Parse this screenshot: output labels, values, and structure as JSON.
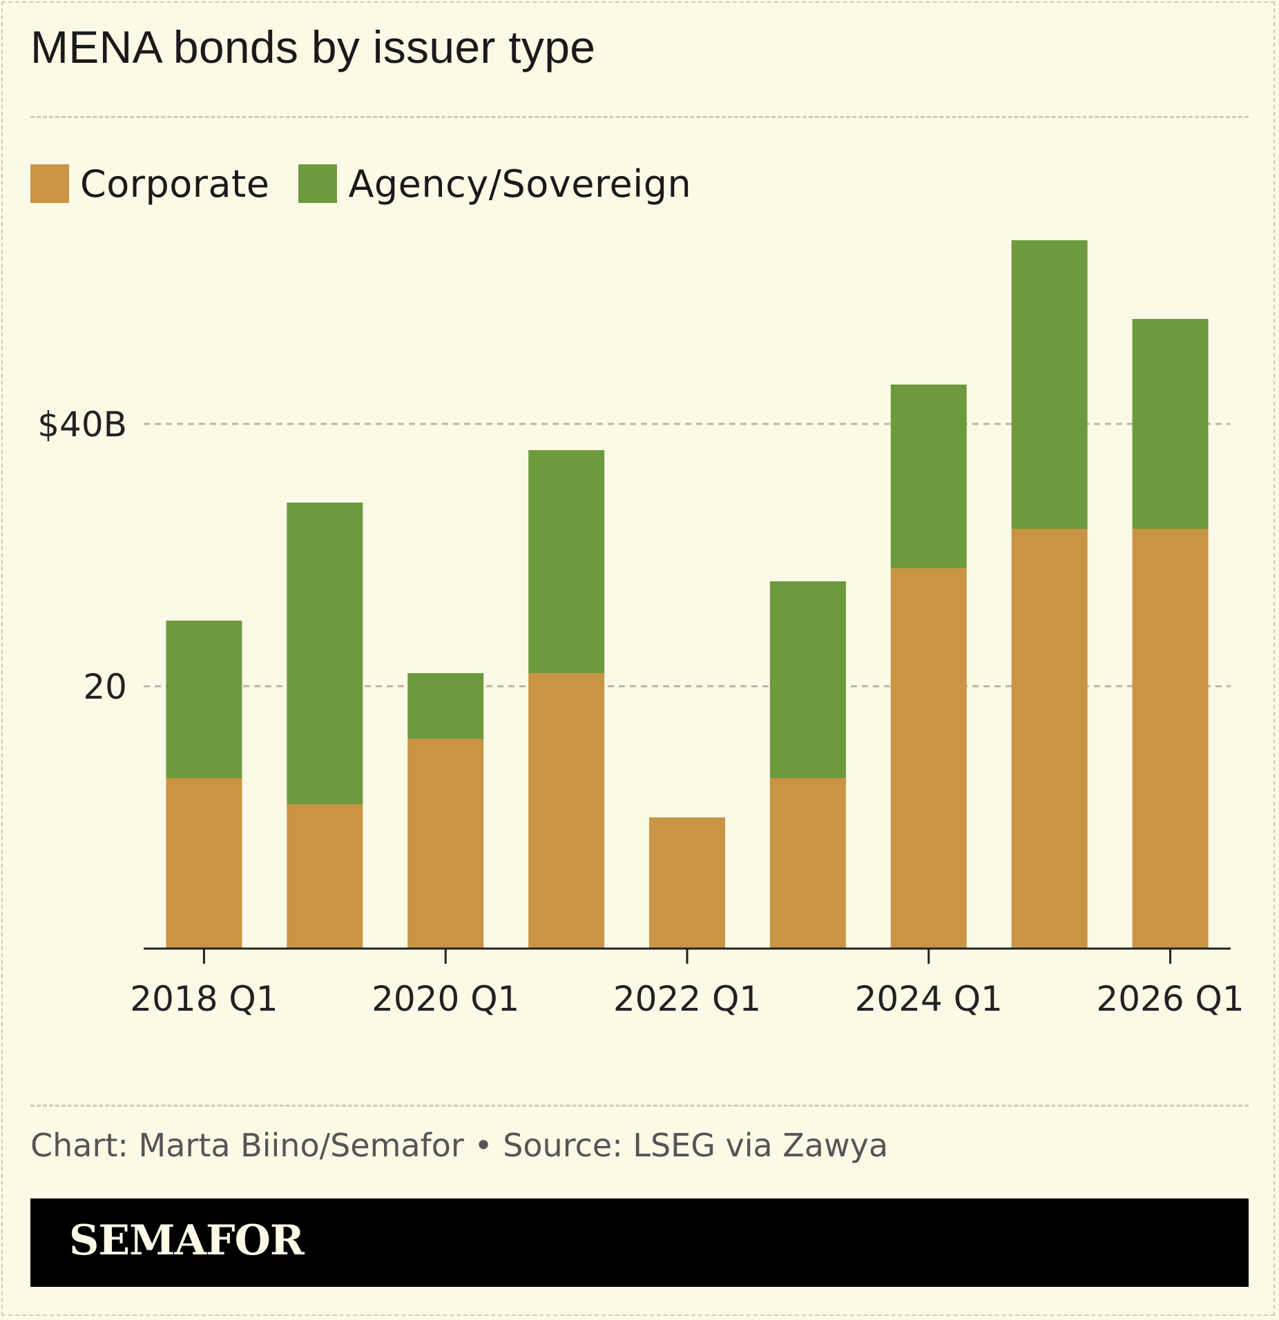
{
  "title": "MENA bonds by issuer type",
  "legend": [
    {
      "label": "Corporate",
      "color": "#c99444"
    },
    {
      "label": "Agency/Sovereign",
      "color": "#6e9a3e"
    }
  ],
  "credit": "Chart: Marta Biino/Semafor • Source: LSEG via Zawya",
  "brand": "SEMAFOR",
  "chart_data": {
    "type": "bar",
    "stacked": true,
    "categories": [
      "2018 Q1",
      "2019 Q1",
      "2020 Q1",
      "2021 Q1",
      "2022 Q1",
      "2023 Q1",
      "2024 Q1",
      "2025 Q1",
      "2026 Q1"
    ],
    "series": [
      {
        "name": "Corporate",
        "color": "#c99444",
        "values": [
          13,
          11,
          16,
          21,
          10,
          13,
          29,
          32,
          32
        ]
      },
      {
        "name": "Agency/Sovereign",
        "color": "#6e9a3e",
        "values": [
          12,
          23,
          5,
          17,
          0,
          15,
          14,
          22,
          16
        ]
      }
    ],
    "x_tick_labels": [
      "2018 Q1",
      "2020 Q1",
      "2022 Q1",
      "2024 Q1",
      "2026 Q1"
    ],
    "y_ticks": [
      {
        "value": 20,
        "label": "20"
      },
      {
        "value": 40,
        "label": "$40B"
      }
    ],
    "ylim": [
      0,
      56
    ],
    "grid": true,
    "legend_position": "top-left"
  }
}
